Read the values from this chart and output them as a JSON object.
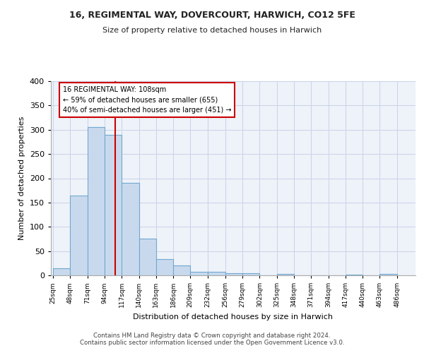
{
  "title1": "16, REGIMENTAL WAY, DOVERCOURT, HARWICH, CO12 5FE",
  "title2": "Size of property relative to detached houses in Harwich",
  "xlabel": "Distribution of detached houses by size in Harwich",
  "ylabel": "Number of detached properties",
  "bar_values": [
    15,
    165,
    305,
    290,
    190,
    75,
    33,
    20,
    8,
    8,
    5,
    4,
    0,
    3,
    0,
    0,
    0,
    2,
    0,
    3
  ],
  "bar_color": "#c9d9ed",
  "bar_edge_color": "#6fa8d0",
  "vline_x": 108,
  "vline_color": "#cc0000",
  "annotation_text": "16 REGIMENTAL WAY: 108sqm\n← 59% of detached houses are smaller (655)\n40% of semi-detached houses are larger (451) →",
  "annotation_box_color": "#ffffff",
  "annotation_box_edge": "#cc0000",
  "ylim": [
    0,
    400
  ],
  "yticks": [
    0,
    50,
    100,
    150,
    200,
    250,
    300,
    350,
    400
  ],
  "grid_color": "#c8d4e8",
  "background_color": "#eef2f9",
  "footer": "Contains HM Land Registry data © Crown copyright and database right 2024.\nContains public sector information licensed under the Open Government Licence v3.0.",
  "bin_edges": [
    25,
    48,
    71,
    94,
    117,
    140,
    163,
    186,
    209,
    232,
    256,
    279,
    302,
    325,
    348,
    371,
    394,
    417,
    440,
    463,
    486
  ]
}
